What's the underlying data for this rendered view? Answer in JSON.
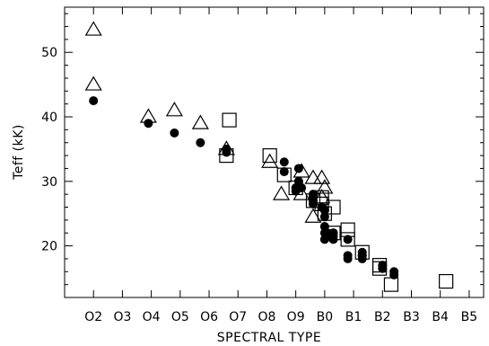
{
  "chart_data": {
    "type": "scatter",
    "title": "",
    "xlabel": "SPECTRAL TYPE",
    "ylabel": "Teff (kK)",
    "x_categories": [
      "O2",
      "O3",
      "O4",
      "O5",
      "O6",
      "O7",
      "O8",
      "O9",
      "B0",
      "B1",
      "B2",
      "B3",
      "B4",
      "B5"
    ],
    "x_category_positions": [
      2,
      3,
      4,
      5,
      6,
      7,
      8,
      9,
      10,
      11,
      12,
      13,
      14,
      15
    ],
    "xlim": [
      1,
      15.5
    ],
    "ylim": [
      12,
      57
    ],
    "yticks": [
      20,
      30,
      40,
      50
    ],
    "grid": false,
    "series": [
      {
        "marker": "circle-filled",
        "x": [
          2.0,
          3.9,
          4.8,
          5.7,
          6.6,
          6.6,
          8.6,
          8.6,
          9.1,
          9.0,
          9.0,
          9.1,
          9.2,
          9.6,
          9.6,
          9.6,
          9.6,
          9.9,
          10.0,
          10.0,
          10.0,
          10.0,
          10.1,
          10.0,
          10.1,
          10.3,
          10.3,
          10.3,
          10.3,
          10.8,
          10.8,
          10.8,
          11.3,
          11.3,
          11.3,
          11.3,
          12.0,
          12.0,
          12.4,
          12.4
        ],
        "y": [
          42.5,
          39.0,
          37.5,
          36.0,
          35.0,
          34.5,
          33.0,
          31.5,
          32.0,
          29.0,
          28.5,
          30.0,
          29.0,
          28.0,
          27.5,
          27.0,
          26.5,
          26.0,
          25.5,
          24.5,
          23.0,
          22.0,
          21.5,
          21.0,
          22.0,
          22.0,
          21.5,
          21.0,
          22.0,
          21.0,
          18.5,
          18.0,
          19.0,
          18.5,
          18.0,
          18.5,
          17.0,
          16.5,
          16.0,
          15.5
        ]
      },
      {
        "marker": "triangle-open",
        "x": [
          2.0,
          2.0,
          3.9,
          4.8,
          5.7,
          6.6,
          8.1,
          8.5,
          9.2,
          9.2,
          9.6,
          9.6,
          9.9,
          9.9,
          10.0
        ],
        "y": [
          53.5,
          45.0,
          40.0,
          41.0,
          39.0,
          35.0,
          33.0,
          28.0,
          31.5,
          28.0,
          30.5,
          24.5,
          30.5,
          27.5,
          29.0
        ]
      },
      {
        "marker": "square-open",
        "x": [
          6.7,
          6.6,
          8.1,
          8.6,
          9.0,
          9.6,
          9.9,
          9.9,
          10.0,
          10.3,
          10.3,
          10.8,
          10.8,
          11.3,
          11.9,
          11.9,
          12.3,
          14.2
        ],
        "y": [
          39.5,
          34.0,
          34.0,
          31.0,
          29.0,
          27.0,
          27.5,
          26.5,
          25.0,
          26.0,
          22.0,
          22.5,
          21.0,
          19.0,
          17.0,
          16.5,
          14.0,
          14.5
        ]
      }
    ]
  }
}
